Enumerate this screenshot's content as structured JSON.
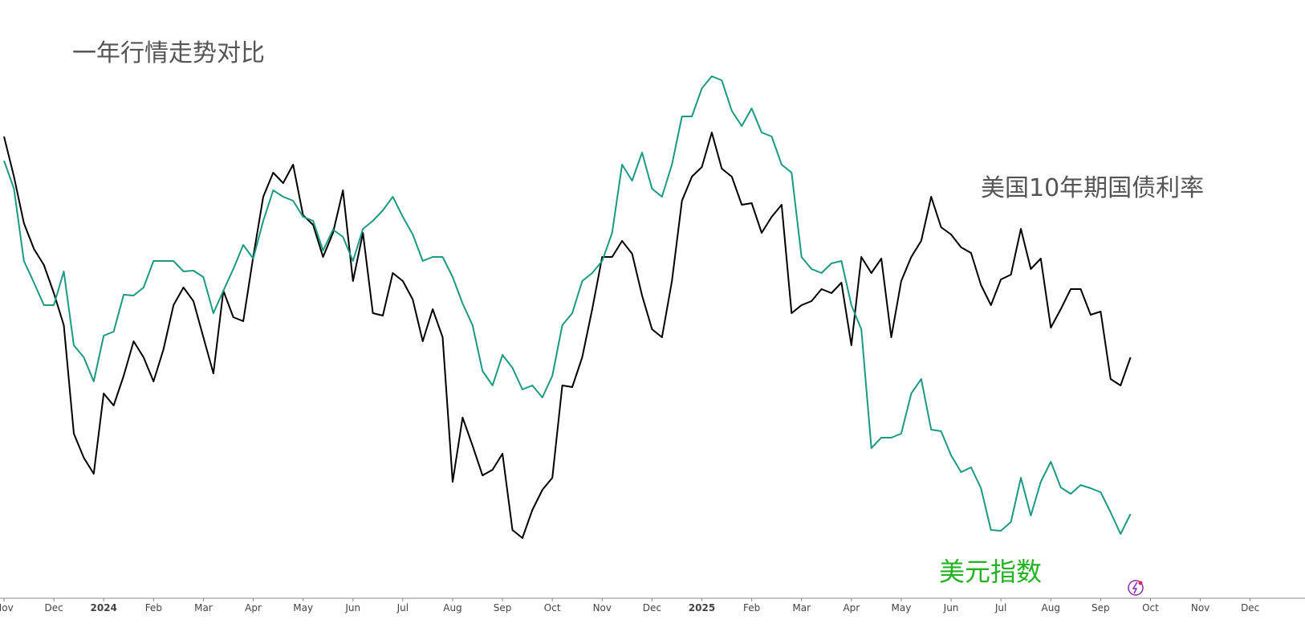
{
  "chart_data": {
    "type": "line",
    "title": "一年行情走势对比",
    "x": [
      0,
      0.2,
      0.4,
      0.6,
      0.8,
      1,
      1.2,
      1.4,
      1.6,
      1.8,
      2,
      2.2,
      2.4,
      2.6,
      2.8,
      3,
      3.2,
      3.4,
      3.6,
      3.8,
      4,
      4.2,
      4.4,
      4.6,
      4.8,
      5,
      5.2,
      5.4,
      5.6,
      5.8,
      6,
      6.2,
      6.4,
      6.6,
      6.8,
      7,
      7.2,
      7.4,
      7.6,
      7.8,
      8,
      8.2,
      8.4,
      8.6,
      8.8,
      9,
      9.2,
      9.4,
      9.6,
      9.8,
      10,
      10.2,
      10.4,
      10.6,
      10.8,
      11,
      11.2,
      11.4,
      11.6,
      11.8,
      12,
      12.2,
      12.4,
      12.6,
      12.8,
      13,
      13.2,
      13.4,
      13.6,
      13.8,
      14,
      14.2,
      14.4,
      14.6,
      14.8,
      15,
      15.2,
      15.4,
      15.6,
      15.8,
      16,
      16.2,
      16.4,
      16.6,
      16.8,
      17,
      17.2,
      17.4,
      17.6,
      17.8,
      18,
      18.2,
      18.4,
      18.6,
      18.8,
      19,
      19.2,
      19.4,
      19.6,
      19.8,
      20,
      20.2,
      20.4,
      20.6,
      20.8,
      21,
      21.2,
      21.4,
      21.6,
      21.8,
      22,
      22.2,
      22.4,
      22.6
    ],
    "series": [
      {
        "name": "美国10年期国债利率",
        "color": "#000000",
        "label_color": "#555555",
        "values": [
          575,
          525,
          467,
          435,
          415,
          380,
          340,
          205,
          175,
          155,
          255,
          240,
          277,
          320,
          300,
          270,
          310,
          365,
          387,
          370,
          325,
          280,
          383,
          350,
          345,
          425,
          500,
          530,
          517,
          540,
          477,
          465,
          425,
          455,
          508,
          395,
          455,
          355,
          352,
          405,
          395,
          372,
          320,
          360,
          325,
          145,
          225,
          190,
          153,
          160,
          180,
          85,
          75,
          110,
          135,
          150,
          265,
          263,
          300,
          360,
          425,
          425,
          445,
          429,
          377,
          335,
          325,
          395,
          495,
          525,
          537,
          580,
          535,
          525,
          490,
          492,
          455,
          475,
          490,
          355,
          365,
          370,
          385,
          380,
          393,
          315,
          425,
          405,
          423,
          325,
          395,
          425,
          445,
          500,
          462,
          453,
          437,
          430,
          390,
          365,
          397,
          403,
          460,
          410,
          423,
          337,
          360,
          385,
          385,
          353,
          357,
          273,
          265,
          300
        ]
      },
      {
        "name": "美元指数",
        "color": "#1a9a82",
        "label_color": "#22b222",
        "values": [
          545,
          510,
          420,
          393,
          365,
          365,
          407,
          315,
          300,
          270,
          327,
          332,
          378,
          377,
          387,
          420,
          420,
          420,
          407,
          408,
          400,
          355,
          383,
          410,
          440,
          423,
          470,
          508,
          500,
          495,
          475,
          470,
          433,
          459,
          450,
          420,
          460,
          470,
          483,
          500,
          475,
          453,
          420,
          425,
          425,
          400,
          367,
          340,
          283,
          265,
          303,
          287,
          260,
          265,
          250,
          277,
          340,
          355,
          395,
          405,
          420,
          455,
          540,
          520,
          555,
          510,
          500,
          540,
          600,
          600,
          635,
          650,
          645,
          607,
          588,
          610,
          580,
          575,
          540,
          530,
          425,
          410,
          405,
          417,
          420,
          365,
          335,
          187,
          200,
          200,
          205,
          255,
          273,
          210,
          208,
          178,
          157,
          163,
          137,
          85,
          84,
          95,
          150,
          103,
          145,
          170,
          138,
          130,
          141,
          137,
          132,
          107,
          80,
          105
        ]
      }
    ],
    "xlim": [
      0,
      26.1
    ],
    "xticks": [
      {
        "value": 0,
        "label": "Nov"
      },
      {
        "value": 1,
        "label": "Dec"
      },
      {
        "value": 2,
        "label": "2024"
      },
      {
        "value": 3,
        "label": "Feb"
      },
      {
        "value": 4,
        "label": "Mar"
      },
      {
        "value": 5,
        "label": "Apr"
      },
      {
        "value": 6,
        "label": "May"
      },
      {
        "value": 7,
        "label": "Jun"
      },
      {
        "value": 8,
        "label": "Jul"
      },
      {
        "value": 9,
        "label": "Aug"
      },
      {
        "value": 10,
        "label": "Sep"
      },
      {
        "value": 11,
        "label": "Oct"
      },
      {
        "value": 12,
        "label": "Nov"
      },
      {
        "value": 13,
        "label": "Dec"
      },
      {
        "value": 14,
        "label": "2025"
      },
      {
        "value": 15,
        "label": "Feb"
      },
      {
        "value": 16,
        "label": "Mar"
      },
      {
        "value": 17,
        "label": "Apr"
      },
      {
        "value": 18,
        "label": "May"
      },
      {
        "value": 19,
        "label": "Jun"
      },
      {
        "value": 20,
        "label": "Jul"
      },
      {
        "value": 21,
        "label": "Aug"
      },
      {
        "value": 22,
        "label": "Sep"
      },
      {
        "value": 23,
        "label": "Oct"
      },
      {
        "value": 24,
        "label": "Nov"
      },
      {
        "value": 25,
        "label": "Dec"
      }
    ],
    "ylim": [
      0,
      700
    ]
  }
}
